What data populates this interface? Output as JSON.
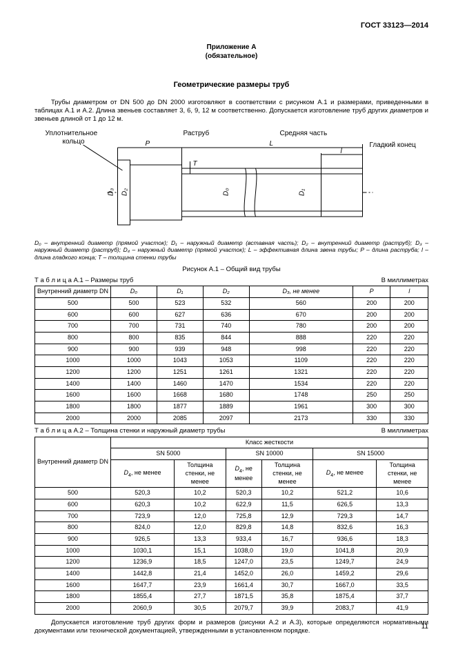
{
  "header": {
    "code": "ГОСТ 33123—2014"
  },
  "appendix": {
    "title_line1": "Приложение А",
    "title_line2": "(обязательное)"
  },
  "section": {
    "title": "Геометрические размеры труб"
  },
  "intro": {
    "text": "Трубы диаметром от DN 500 до DN 2000 изготовляют в соответствии с рисунком А.1 и размерами, приведенными в таблицах А.1 и А.2. Длина звеньев составляет 3, 6, 9, 12 м соответственно. Допускается изготовление труб других диаметров и звеньев длиной от 1 до 12 м."
  },
  "diagram": {
    "labels": {
      "seal_ring_l1": "Уплотнительное",
      "seal_ring_l2": "кольцо",
      "socket": "Раструб",
      "middle": "Средняя часть",
      "spigot": "Гладкий конец",
      "P": "P",
      "L": "L",
      "l": "l",
      "T": "T",
      "D0": "D₀",
      "D1": "D₁",
      "D2": "D₂",
      "D3": "D₃"
    },
    "colors": {
      "line": "#000000",
      "fill": "#ffffff",
      "hatch": "#808080"
    }
  },
  "legend": {
    "text": "D₀ – внутренний диаметр (прямой участок); D₁ – наружный диаметр (вставная часть); D₂ – внутренний диаметр (раструб); D₃ – наружный диаметр (раструб); D₄ – наружный диаметр (прямой участок); L – эффективная длина звена трубы; P – длина раструба; l – длина гладкого конца; T – толщина стенки трубы"
  },
  "fig_caption": "Рисунок А.1 – Общий вид трубы",
  "table1": {
    "label": "Т а б л и ц а  А.1 – Размеры труб",
    "units": "В миллиметрах",
    "headers": [
      "Внутренний диаметр DN",
      "D₀",
      "D₁",
      "D₂",
      "D₃, не менее",
      "P",
      "l"
    ],
    "rows": [
      [
        "500",
        "500",
        "523",
        "532",
        "560",
        "200",
        "200"
      ],
      [
        "600",
        "600",
        "627",
        "636",
        "670",
        "200",
        "200"
      ],
      [
        "700",
        "700",
        "731",
        "740",
        "780",
        "200",
        "200"
      ],
      [
        "800",
        "800",
        "835",
        "844",
        "888",
        "220",
        "220"
      ],
      [
        "900",
        "900",
        "939",
        "948",
        "998",
        "220",
        "220"
      ],
      [
        "1000",
        "1000",
        "1043",
        "1053",
        "1109",
        "220",
        "220"
      ],
      [
        "1200",
        "1200",
        "1251",
        "1261",
        "1321",
        "220",
        "220"
      ],
      [
        "1400",
        "1400",
        "1460",
        "1470",
        "1534",
        "220",
        "220"
      ],
      [
        "1600",
        "1600",
        "1668",
        "1680",
        "1748",
        "250",
        "250"
      ],
      [
        "1800",
        "1800",
        "1877",
        "1889",
        "1961",
        "300",
        "300"
      ],
      [
        "2000",
        "2000",
        "2085",
        "2097",
        "2173",
        "330",
        "330"
      ]
    ]
  },
  "table2": {
    "label": "Т а б л и ц а  А.2 – Толщина стенки и наружный диаметр трубы",
    "units": "В миллиметрах",
    "header_top": "Класс жесткости",
    "header_dn": "Внутренний диаметр DN",
    "classes": [
      "SN 5000",
      "SN 10000",
      "SN 15000"
    ],
    "sub": {
      "d4": "D₄, не менее",
      "d4s": "D₄, не\nменее",
      "wall": "Толщина\nстенки, не\nменее"
    },
    "rows": [
      [
        "500",
        "520,3",
        "10,2",
        "520,3",
        "10,2",
        "521,2",
        "10,6"
      ],
      [
        "600",
        "620,3",
        "10,2",
        "622,9",
        "11,5",
        "626,5",
        "13,3"
      ],
      [
        "700",
        "723,9",
        "12,0",
        "725,8",
        "12,9",
        "729,3",
        "14,7"
      ],
      [
        "800",
        "824,0",
        "12,0",
        "829,8",
        "14,8",
        "832,6",
        "16,3"
      ],
      [
        "900",
        "926,5",
        "13,3",
        "933,4",
        "16,7",
        "936,6",
        "18,3"
      ],
      [
        "1000",
        "1030,1",
        "15,1",
        "1038,0",
        "19,0",
        "1041,8",
        "20,9"
      ],
      [
        "1200",
        "1236,9",
        "18,5",
        "1247,0",
        "23,5",
        "1249,7",
        "24,9"
      ],
      [
        "1400",
        "1442,8",
        "21,4",
        "1452,0",
        "26,0",
        "1459,2",
        "29,6"
      ],
      [
        "1600",
        "1647,7",
        "23,9",
        "1661,4",
        "30,7",
        "1667,0",
        "33,5"
      ],
      [
        "1800",
        "1855,4",
        "27,7",
        "1871,5",
        "35,8",
        "1875,4",
        "37,7"
      ],
      [
        "2000",
        "2060,9",
        "30,5",
        "2079,7",
        "39,9",
        "2083,7",
        "41,9"
      ]
    ]
  },
  "footer_note": "Допускается изготовление труб других форм и размеров (рисунки А.2 и А.3), которые определяются нормативными документами или технической документацией, утвержденными в установленном порядке.",
  "page_number": "11"
}
